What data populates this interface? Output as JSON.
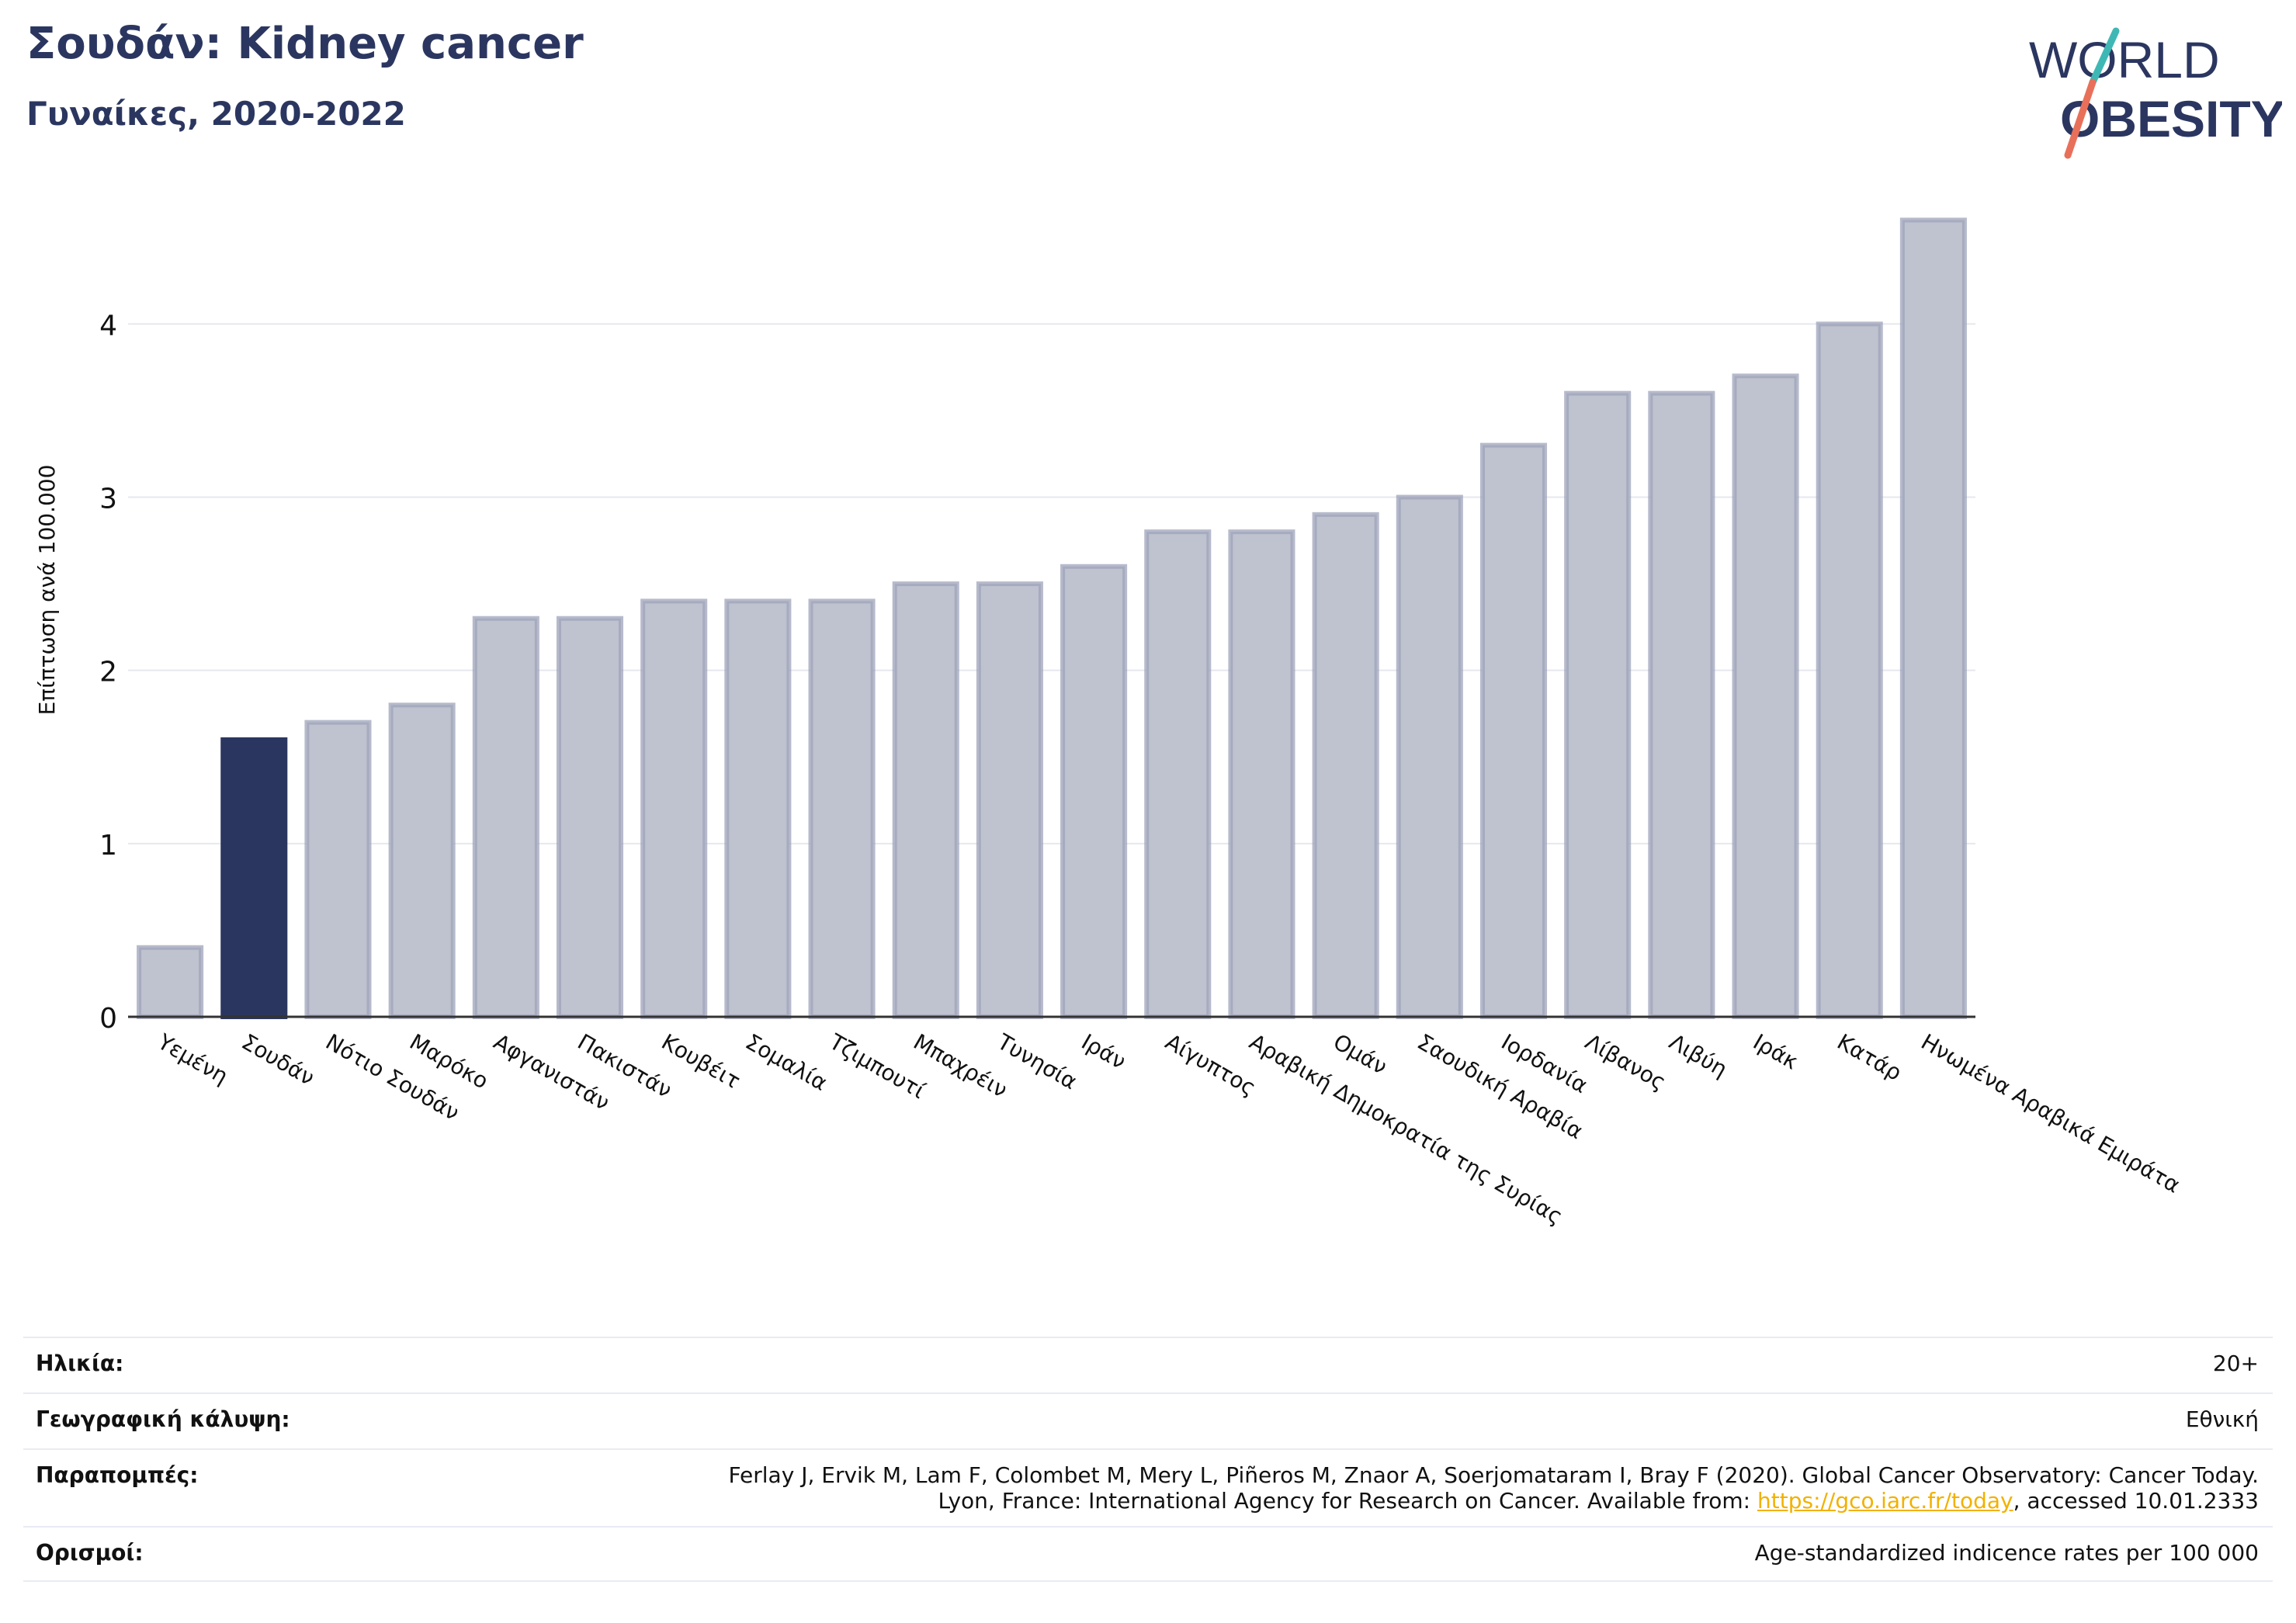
{
  "header": {
    "title": "Σουδάν: Kidney cancer",
    "subtitle": "Γυναίκες, 2020-2022"
  },
  "logo": {
    "line1": "WORLD",
    "line2": "OBESITY",
    "colors": {
      "text": "#2b3660",
      "slash_top": "#3fb8b5",
      "slash_bottom": "#e8705a"
    }
  },
  "chart_data": {
    "type": "bar",
    "ylabel": "Επίπτωση ανά 100.000",
    "ylim": [
      0,
      4.75
    ],
    "yticks": [
      0,
      1,
      2,
      3,
      4
    ],
    "grid": true,
    "highlight": "Σουδάν",
    "colors": {
      "bar": "#bfc2cf",
      "bar_edge": "#9ea3ba",
      "highlight": "#2b3660"
    },
    "categories": [
      "Υεμένη",
      "Σουδάν",
      "Νότιο Σουδάν",
      "Μαρόκο",
      "Αφγανιστάν",
      "Πακιστάν",
      "Κουβέιτ",
      "Σομαλία",
      "Τζιμπουτί",
      "Μπαχρέιν",
      "Τυνησία",
      "Ιράν",
      "Αίγυπτος",
      "Αραβική Δημοκρατία της Συρίας",
      "Ομάν",
      "Σαουδική Αραβία",
      "Ιορδανία",
      "Λίβανος",
      "Λιβύη",
      "Ιράκ",
      "Κατάρ",
      "Ηνωμένα Αραβικά Εμιράτα"
    ],
    "values": [
      0.4,
      1.6,
      1.7,
      1.8,
      2.3,
      2.3,
      2.4,
      2.4,
      2.4,
      2.5,
      2.5,
      2.6,
      2.8,
      2.8,
      2.9,
      3.0,
      3.3,
      3.6,
      3.6,
      3.7,
      4.0,
      4.6
    ]
  },
  "meta": {
    "age_label": "Ηλικία:",
    "age_value": "20+",
    "coverage_label": "Γεωγραφική κάλυψη:",
    "coverage_value": "Εθνική",
    "refs_label": "Παραπομπές:",
    "refs_line1": "Ferlay J, Ervik M, Lam F, Colombet M, Mery L, Piñeros M, Znaor A, Soerjomataram I, Bray F (2020). Global Cancer Observatory: Cancer Today.",
    "refs_line2_pre": "Lyon, France: International Agency for Research on Cancer. Available from: ",
    "refs_link": "https://gco.iarc.fr/today",
    "refs_line2_post": ", accessed 10.01.2333",
    "defs_label": "Ορισμοί:",
    "defs_value": "Age-standardized indicence rates per 100 000"
  }
}
